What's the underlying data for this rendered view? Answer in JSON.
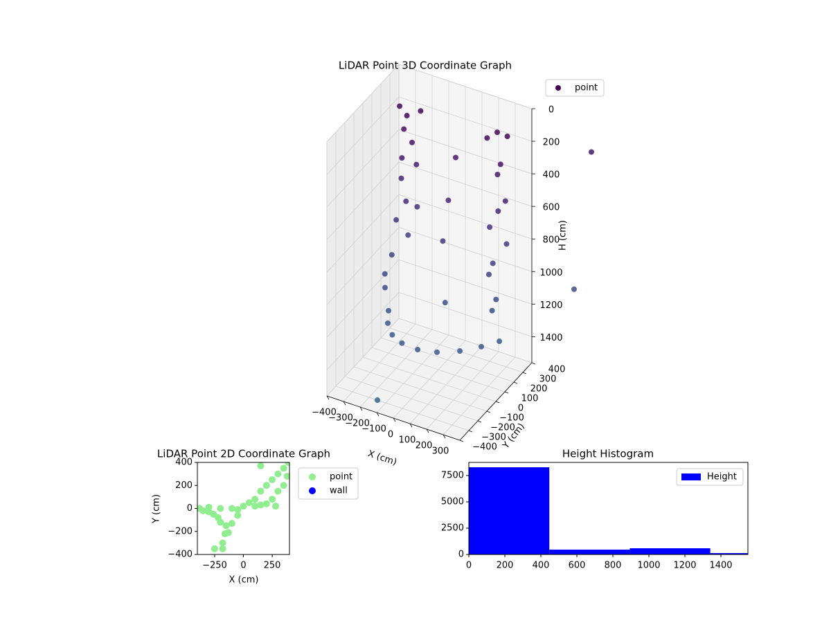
{
  "chart_data": [
    {
      "type": "scatter3d",
      "title": "LiDAR Point 3D Coordinate Graph",
      "xlabel": "X (cm)",
      "ylabel": "Y (cm)",
      "zlabel": "H (cm)",
      "xlim": [
        -400,
        400
      ],
      "ylim": [
        -400,
        400
      ],
      "zlim": [
        0,
        1560
      ],
      "z_inverted": true,
      "xticks": [
        {
          "value": -400,
          "label": "−400"
        },
        {
          "value": -300,
          "label": "−300"
        },
        {
          "value": -200,
          "label": "−200"
        },
        {
          "value": -100,
          "label": "−100"
        },
        0,
        100,
        200,
        300
      ],
      "yticks": [
        {
          "value": -400,
          "label": "−400"
        },
        {
          "value": -300,
          "label": "−300"
        },
        {
          "value": -200,
          "label": "−200"
        },
        {
          "value": -100,
          "label": "−100"
        },
        0,
        100,
        200,
        300,
        400
      ],
      "zticks": [
        0,
        200,
        400,
        600,
        800,
        1000,
        1200,
        1400
      ],
      "grid": true,
      "legend": "upper right",
      "colormap": [
        "#440154",
        "#482878",
        "#3e4a89",
        "#31688e"
      ],
      "series": [
        {
          "name": "point",
          "color": "#440154",
          "x": [
            -260,
            -200,
            -150,
            -240,
            -180,
            -230,
            -170,
            -250,
            -200,
            -160,
            -270,
            -220,
            -280,
            -300,
            -310,
            300,
            350,
            250,
            320,
            280,
            360,
            300,
            260,
            340,
            290,
            250,
            320,
            280,
            -300,
            -250,
            -180,
            -100,
            0,
            100,
            200,
            280,
            340,
            50,
            60,
            0,
            30,
            650,
            600,
            -150
          ],
          "y": [
            150,
            120,
            180,
            160,
            140,
            120,
            170,
            150,
            110,
            160,
            130,
            170,
            100,
            60,
            80,
            200,
            220,
            180,
            200,
            240,
            180,
            210,
            190,
            230,
            170,
            200,
            150,
            180,
            100,
            0,
            -80,
            -120,
            -130,
            -100,
            -30,
            60,
            150,
            200,
            100,
            150,
            120,
            600,
            500,
            -300
          ],
          "z": [
            60,
            80,
            70,
            200,
            250,
            350,
            400,
            500,
            600,
            650,
            750,
            850,
            950,
            1050,
            1150,
            60,
            80,
            100,
            250,
            350,
            450,
            550,
            650,
            750,
            850,
            950,
            1050,
            1150,
            1300,
            1300,
            1300,
            1300,
            1300,
            1300,
            1300,
            1300,
            1300,
            300,
            500,
            800,
            1150,
            300,
            1100,
            1560
          ]
        }
      ]
    },
    {
      "type": "scatter",
      "title": "LiDAR Point 2D Coordinate Graph",
      "xlabel": "X (cm)",
      "ylabel": "Y (cm)",
      "xlim": [
        -400,
        400
      ],
      "ylim": [
        -400,
        400
      ],
      "xticks": [
        {
          "value": -250,
          "label": "−250"
        },
        0,
        250
      ],
      "yticks": [
        {
          "value": -400,
          "label": "−400"
        },
        {
          "value": -200,
          "label": "−200"
        },
        0,
        200,
        400
      ],
      "legend": "outside upper right",
      "series": [
        {
          "name": "point",
          "color": "#90ee90",
          "x": [
            -380,
            -350,
            -300,
            -260,
            -220,
            -200,
            -150,
            -100,
            -50,
            0,
            50,
            100,
            150,
            200,
            250,
            300,
            350,
            390,
            300,
            250,
            200,
            350,
            150,
            -250,
            -180,
            -180,
            -160,
            -130,
            -100,
            -300,
            -200,
            150,
            380,
            100,
            280,
            -50
          ],
          "y": [
            0,
            -20,
            10,
            -50,
            -80,
            -120,
            -150,
            -130,
            -60,
            20,
            50,
            80,
            150,
            200,
            250,
            300,
            350,
            400,
            150,
            80,
            40,
            200,
            30,
            -350,
            -350,
            -300,
            -220,
            -210,
            0,
            -30,
            0,
            370,
            280,
            20,
            20,
            -10
          ]
        },
        {
          "name": "wall",
          "color": "#0000ff",
          "x": [],
          "y": []
        }
      ]
    },
    {
      "type": "histogram",
      "title": "Height Histogram",
      "bins": [
        0,
        447,
        894,
        1341,
        1788
      ],
      "values": [
        8290,
        460,
        590,
        130
      ],
      "xlim": [
        0,
        1550
      ],
      "ylim": [
        0,
        8750
      ],
      "xticks": [
        0,
        200,
        400,
        600,
        800,
        1000,
        1200,
        1400
      ],
      "yticks": [
        0,
        2500,
        5000,
        7500
      ],
      "legend": "upper right",
      "series_name": "Height",
      "color": "#0000ff"
    }
  ]
}
